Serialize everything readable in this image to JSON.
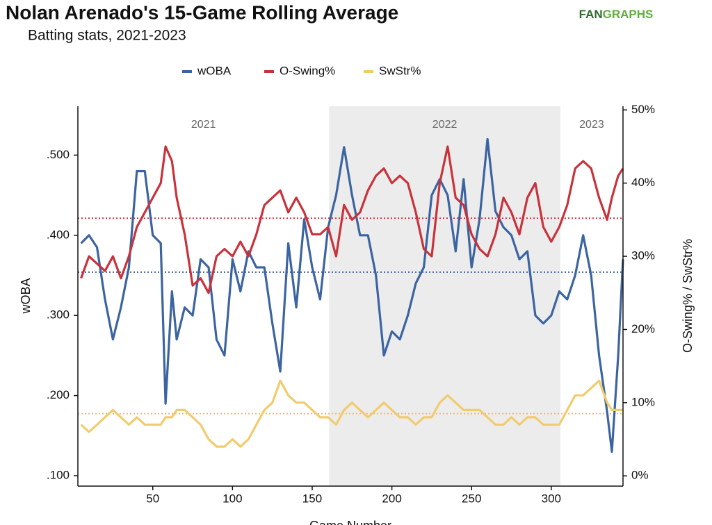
{
  "chart_data": {
    "type": "line",
    "title": "Nolan Arenado's 15-Game Rolling Average",
    "subtitle": "Batting stats, 2021-2023",
    "logo": [
      "FAN",
      "GRAPHS"
    ],
    "x_label": "Game Number",
    "y_label": "wOBA",
    "y2_label": "O-Swing% / SwStr%",
    "x": [
      5,
      10,
      15,
      20,
      25,
      30,
      35,
      40,
      45,
      50,
      55,
      58,
      62,
      65,
      70,
      75,
      80,
      85,
      90,
      95,
      100,
      105,
      110,
      115,
      120,
      125,
      130,
      135,
      140,
      145,
      150,
      155,
      160,
      165,
      170,
      175,
      180,
      185,
      190,
      195,
      200,
      205,
      210,
      215,
      220,
      225,
      230,
      235,
      240,
      245,
      250,
      255,
      260,
      265,
      270,
      275,
      280,
      285,
      290,
      295,
      300,
      305,
      310,
      315,
      320,
      325,
      330,
      335,
      338,
      342,
      345
    ],
    "series": [
      {
        "name": "wOBA",
        "color": "#3b64a0",
        "axis": "y",
        "values": [
          0.39,
          0.4,
          0.385,
          0.32,
          0.27,
          0.31,
          0.36,
          0.48,
          0.48,
          0.4,
          0.39,
          0.19,
          0.33,
          0.27,
          0.31,
          0.3,
          0.37,
          0.36,
          0.27,
          0.25,
          0.37,
          0.33,
          0.38,
          0.36,
          0.36,
          0.29,
          0.23,
          0.39,
          0.31,
          0.42,
          0.36,
          0.32,
          0.41,
          0.45,
          0.51,
          0.45,
          0.4,
          0.4,
          0.35,
          0.25,
          0.28,
          0.27,
          0.3,
          0.34,
          0.36,
          0.45,
          0.47,
          0.45,
          0.38,
          0.47,
          0.36,
          0.42,
          0.52,
          0.43,
          0.41,
          0.4,
          0.37,
          0.38,
          0.3,
          0.29,
          0.3,
          0.33,
          0.32,
          0.35,
          0.4,
          0.35,
          0.25,
          0.18,
          0.13,
          0.25,
          0.37
        ]
      },
      {
        "name": "O-Swing%",
        "color": "#c8333b",
        "axis": "y2",
        "values": [
          27,
          30,
          29,
          28,
          30,
          27,
          30,
          34,
          36,
          38,
          40,
          45,
          43,
          38,
          33,
          26,
          27,
          25,
          30,
          31,
          30,
          32,
          30,
          33,
          37,
          38,
          39,
          36,
          38,
          36,
          33,
          33,
          34,
          30,
          37,
          35,
          36,
          39,
          41,
          42,
          40,
          41,
          40,
          36,
          31,
          30,
          40,
          45,
          38,
          37,
          33,
          31,
          30,
          33,
          38,
          36,
          33,
          38,
          40,
          34,
          32,
          34,
          37,
          42,
          43,
          42,
          38,
          35,
          38,
          41,
          42
        ]
      },
      {
        "name": "SwStr%",
        "color": "#f2cb6c",
        "axis": "y2",
        "values": [
          7,
          6,
          7,
          8,
          9,
          8,
          7,
          8,
          7,
          7,
          7,
          8,
          8,
          9,
          9,
          8,
          7,
          5,
          4,
          4,
          5,
          4,
          5,
          7,
          9,
          10,
          13,
          11,
          10,
          10,
          9,
          8,
          8,
          7,
          9,
          10,
          9,
          8,
          9,
          10,
          9,
          8,
          8,
          7,
          8,
          8,
          10,
          11,
          10,
          9,
          9,
          9,
          8,
          7,
          7,
          8,
          7,
          8,
          8,
          7,
          7,
          7,
          9,
          11,
          11,
          12,
          13,
          10,
          9,
          9,
          9
        ]
      }
    ],
    "reference_lines": [
      {
        "value": 0.354,
        "axis": "y",
        "color": "#3b64a0"
      },
      {
        "value": 35.2,
        "axis": "y2",
        "color": "#c8333b"
      },
      {
        "value": 8.5,
        "axis": "y2",
        "color": "#e8c060"
      }
    ],
    "seasons": [
      {
        "label": "2021",
        "start": 3,
        "end": 160.6,
        "shaded": false
      },
      {
        "label": "2022",
        "start": 160.6,
        "end": 305.7,
        "shaded": true
      },
      {
        "label": "2023",
        "start": 305.7,
        "end": 345,
        "shaded": false
      }
    ],
    "xlim": [
      3,
      345
    ],
    "xticks": [
      50,
      100,
      150,
      200,
      250,
      300
    ],
    "ylim": [
      0.087,
      0.561
    ],
    "yticks": [
      {
        "value": 0.1,
        "label": ".100"
      },
      {
        "value": 0.2,
        "label": ".200"
      },
      {
        "value": 0.3,
        "label": ".300"
      },
      {
        "value": 0.4,
        "label": ".400"
      },
      {
        "value": 0.5,
        "label": ".500"
      }
    ],
    "y2lim": [
      -1.4,
      50.5
    ],
    "y2ticks": [
      {
        "value": 0,
        "label": "0%"
      },
      {
        "value": 10,
        "label": "10%"
      },
      {
        "value": 20,
        "label": "20%"
      },
      {
        "value": 30,
        "label": "30%"
      },
      {
        "value": 40,
        "label": "40%"
      },
      {
        "value": 50,
        "label": "50%"
      }
    ],
    "legend": "top"
  }
}
